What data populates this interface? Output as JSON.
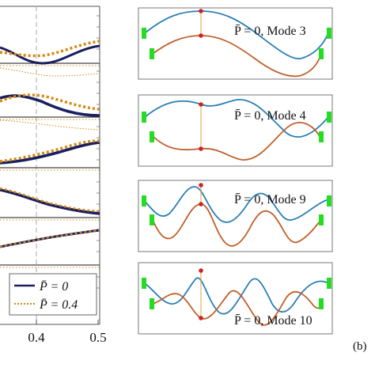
{
  "figure": {
    "panel_label": "(b)",
    "left_panel": {
      "x_ticks": [
        "0.4",
        "0.5"
      ],
      "legend": [
        {
          "label": "P̄ = 0",
          "style": "solid",
          "color": "#1a1f5e"
        },
        {
          "label": "P̄ = 0.4",
          "style": "dotted",
          "color": "#d4880f"
        }
      ]
    },
    "mode_boxes": [
      {
        "caption": "P̄ = 0, Mode 3"
      },
      {
        "caption": "P̄ = 0, Mode 4"
      },
      {
        "caption": "P̄ = 0, Mode 9"
      },
      {
        "caption": "P̄ = 0, Mode 10"
      }
    ],
    "colors": {
      "upper_curve": "#2a7fb5",
      "lower_curve": "#c0602a",
      "support": "#22dd22",
      "node": "#cc2222",
      "connector": "#e0a040",
      "dashed_guide": "#aaaaaa"
    }
  }
}
